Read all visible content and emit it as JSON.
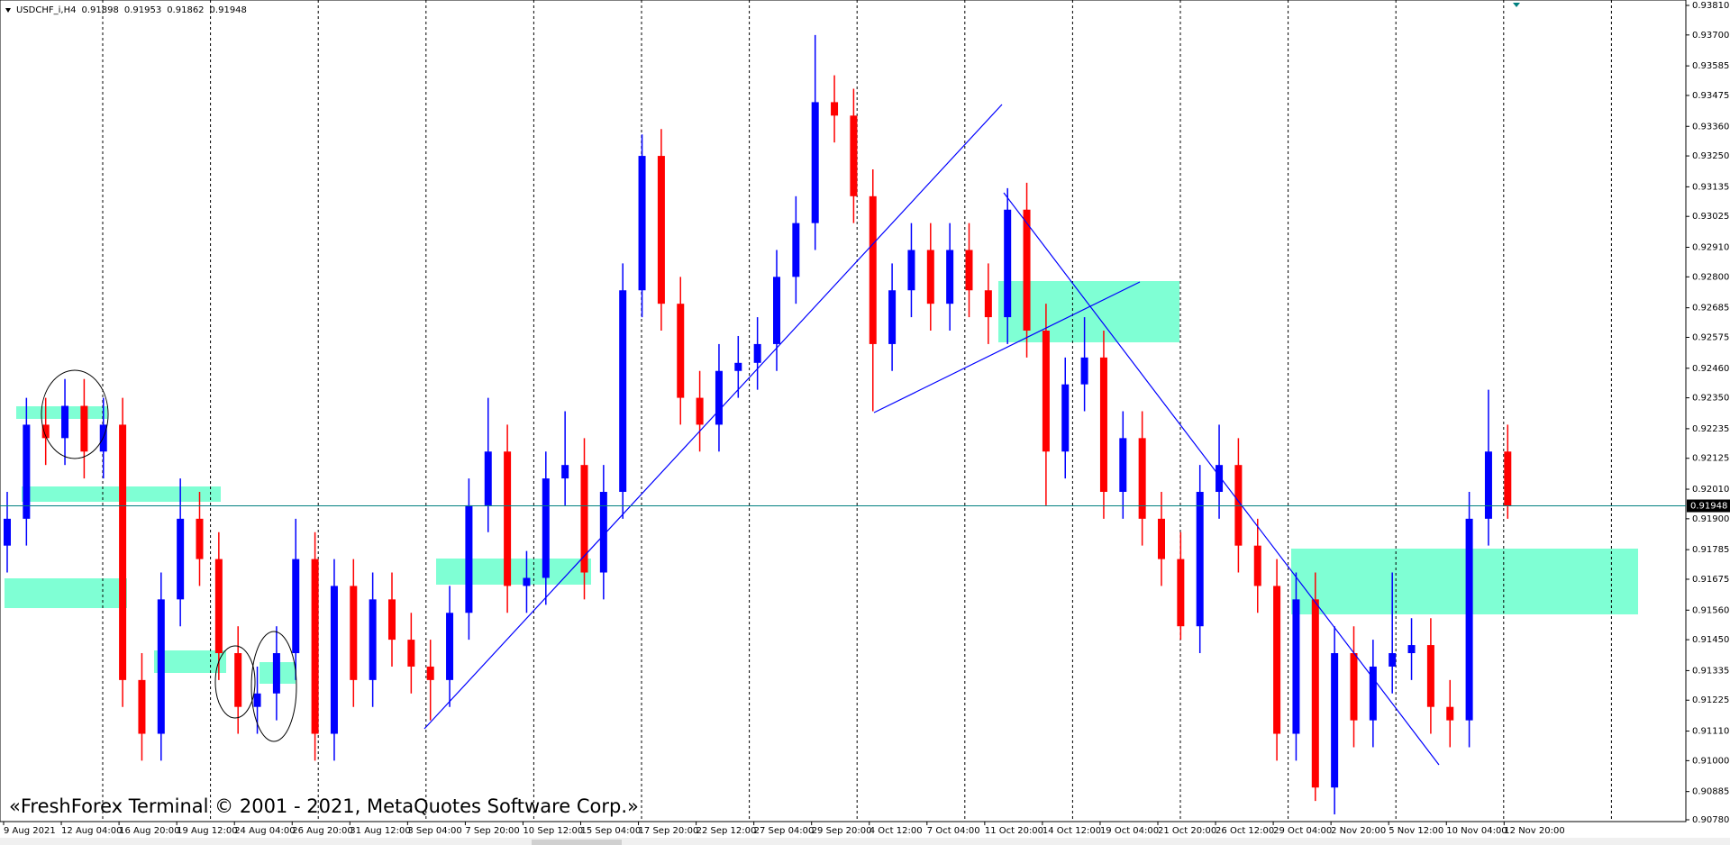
{
  "chart_data": {
    "type": "candlestick",
    "symbol": "USDCHF_i,H4",
    "header_values": [
      0.91898,
      0.91953,
      0.91862,
      0.91948
    ],
    "watermark": "«FreshForex Terminal © 2001 - 2021, MetaQuotes Software Corp.»",
    "current_price": 0.91948,
    "up_color": "#0000ff",
    "down_color": "#ff0000",
    "price_line_color": "#008080",
    "categories": [
      "9 Aug 2021",
      null,
      null,
      "12 Aug 04:00",
      null,
      null,
      "16 Aug 20:00",
      null,
      null,
      "19 Aug 12:00",
      null,
      null,
      "24 Aug 04:00",
      null,
      null,
      "26 Aug 20:00",
      null,
      null,
      "31 Aug 12:00",
      null,
      null,
      "3 Sep 04:00",
      null,
      null,
      "7 Sep 20:00",
      null,
      null,
      "10 Sep 12:00",
      null,
      null,
      "15 Sep 04:00",
      null,
      null,
      "17 Sep 20:00",
      null,
      null,
      "22 Sep 12:00",
      null,
      null,
      "27 Sep 04:00",
      null,
      null,
      "29 Sep 20:00",
      null,
      null,
      "4 Oct 12:00",
      null,
      null,
      "7 Oct 04:00",
      null,
      null,
      "11 Oct 20:00",
      null,
      null,
      "14 Oct 12:00",
      null,
      null,
      "19 Oct 04:00",
      null,
      null,
      "21 Oct 20:00",
      null,
      null,
      "26 Oct 12:00",
      null,
      null,
      "29 Oct 04:00",
      null,
      null,
      "2 Nov 20:00",
      null,
      null,
      "5 Nov 12:00",
      null,
      null,
      "10 Nov 04:00",
      null,
      null,
      "12 Nov 20:00"
    ],
    "open": [
      0.918,
      0.919,
      0.9225,
      0.922,
      0.9232,
      0.9215,
      0.9225,
      0.913,
      0.911,
      0.916,
      0.919,
      0.9175,
      0.914,
      0.912,
      0.9125,
      0.914,
      0.9175,
      0.911,
      0.9165,
      0.913,
      0.916,
      0.9145,
      0.9135,
      0.913,
      0.9155,
      0.9195,
      0.9215,
      0.9165,
      0.9168,
      0.9205,
      0.921,
      0.917,
      0.92,
      0.9275,
      0.9325,
      0.927,
      0.9235,
      0.9225,
      0.9245,
      0.9248,
      0.9255,
      0.928,
      0.93,
      0.9345,
      0.934,
      0.931,
      0.9255,
      0.9275,
      0.929,
      0.927,
      0.929,
      0.9275,
      0.9265,
      0.9305,
      0.926,
      0.9215,
      0.924,
      0.925,
      0.92,
      0.922,
      0.919,
      0.9175,
      0.915,
      0.92,
      0.921,
      0.918,
      0.9165,
      0.911,
      0.916,
      0.909,
      0.914,
      0.9115,
      0.9135,
      0.914,
      0.9143,
      0.912,
      0.9115,
      0.919,
      0.9215
    ],
    "high": [
      0.92,
      0.9235,
      0.9235,
      0.9242,
      0.9242,
      0.9235,
      0.9235,
      0.914,
      0.917,
      0.9205,
      0.92,
      0.9185,
      0.915,
      0.9135,
      0.915,
      0.919,
      0.9185,
      0.9175,
      0.9175,
      0.917,
      0.917,
      0.9155,
      0.9145,
      0.9165,
      0.9205,
      0.9235,
      0.9225,
      0.9178,
      0.9215,
      0.923,
      0.922,
      0.921,
      0.9285,
      0.9333,
      0.9335,
      0.928,
      0.9245,
      0.9255,
      0.9258,
      0.9265,
      0.929,
      0.931,
      0.937,
      0.9355,
      0.935,
      0.932,
      0.9285,
      0.93,
      0.93,
      0.93,
      0.93,
      0.9285,
      0.9313,
      0.9315,
      0.927,
      0.925,
      0.9265,
      0.926,
      0.923,
      0.923,
      0.92,
      0.9185,
      0.921,
      0.9225,
      0.922,
      0.919,
      0.9175,
      0.917,
      0.917,
      0.915,
      0.915,
      0.9145,
      0.917,
      0.9153,
      0.9153,
      0.913,
      0.92,
      0.9238,
      0.9225
    ],
    "low": [
      0.917,
      0.918,
      0.921,
      0.921,
      0.9205,
      0.9205,
      0.912,
      0.91,
      0.91,
      0.915,
      0.9165,
      0.913,
      0.911,
      0.911,
      0.9115,
      0.913,
      0.91,
      0.91,
      0.912,
      0.912,
      0.9135,
      0.9125,
      0.9115,
      0.912,
      0.9145,
      0.9185,
      0.9155,
      0.9155,
      0.9158,
      0.9195,
      0.916,
      0.916,
      0.919,
      0.9265,
      0.926,
      0.9225,
      0.9215,
      0.9215,
      0.9235,
      0.9238,
      0.9245,
      0.927,
      0.929,
      0.933,
      0.93,
      0.923,
      0.9245,
      0.9265,
      0.926,
      0.926,
      0.9265,
      0.9255,
      0.9255,
      0.925,
      0.9195,
      0.9205,
      0.923,
      0.919,
      0.919,
      0.918,
      0.9165,
      0.9145,
      0.914,
      0.919,
      0.917,
      0.9155,
      0.91,
      0.91,
      0.9085,
      0.908,
      0.9105,
      0.9105,
      0.9125,
      0.913,
      0.911,
      0.9105,
      0.9105,
      0.918,
      0.919
    ],
    "close": [
      0.919,
      0.9225,
      0.922,
      0.9232,
      0.9215,
      0.9225,
      0.913,
      0.911,
      0.916,
      0.919,
      0.9175,
      0.914,
      0.912,
      0.9125,
      0.914,
      0.9175,
      0.911,
      0.9165,
      0.913,
      0.916,
      0.9145,
      0.9135,
      0.913,
      0.9155,
      0.9195,
      0.9215,
      0.9165,
      0.9168,
      0.9205,
      0.921,
      0.917,
      0.92,
      0.9275,
      0.9325,
      0.927,
      0.9235,
      0.9225,
      0.9245,
      0.9248,
      0.9255,
      0.928,
      0.93,
      0.9345,
      0.934,
      0.931,
      0.9255,
      0.9275,
      0.929,
      0.927,
      0.929,
      0.9275,
      0.9265,
      0.9305,
      0.926,
      0.9215,
      0.924,
      0.925,
      0.92,
      0.922,
      0.919,
      0.9175,
      0.915,
      0.92,
      0.921,
      0.918,
      0.9165,
      0.911,
      0.916,
      0.909,
      0.914,
      0.9115,
      0.9135,
      0.914,
      0.9143,
      0.912,
      0.9115,
      0.919,
      0.9215,
      0.91948
    ],
    "ylim": [
      0.9078,
      0.9381
    ],
    "yticks": [
      {
        "value": 0.9381,
        "label": "0.93810"
      },
      {
        "value": 0.937,
        "label": "0.93700"
      },
      0.93585,
      0.93475,
      {
        "value": 0.9336,
        "label": "0.93360"
      },
      {
        "value": 0.9325,
        "label": "0.93250"
      },
      0.93135,
      0.93025,
      {
        "value": 0.9291,
        "label": "0.92910"
      },
      {
        "value": 0.928,
        "label": "0.92800"
      },
      0.92685,
      0.92575,
      {
        "value": 0.9246,
        "label": "0.92460"
      },
      {
        "value": 0.9235,
        "label": "0.92350"
      },
      0.92235,
      0.92125,
      {
        "value": 0.9201,
        "label": "0.92010"
      },
      {
        "value": 0.919,
        "label": "0.91900"
      },
      0.91785,
      0.91675,
      {
        "value": 0.9156,
        "label": "0.91560"
      },
      {
        "value": 0.9145,
        "label": "0.91450"
      },
      0.91335,
      0.91225,
      {
        "value": 0.9111,
        "label": "0.91110"
      },
      {
        "value": 0.91,
        "label": "0.91000"
      },
      0.90885,
      {
        "value": 0.9078,
        "label": "0.90780"
      }
    ]
  }
}
